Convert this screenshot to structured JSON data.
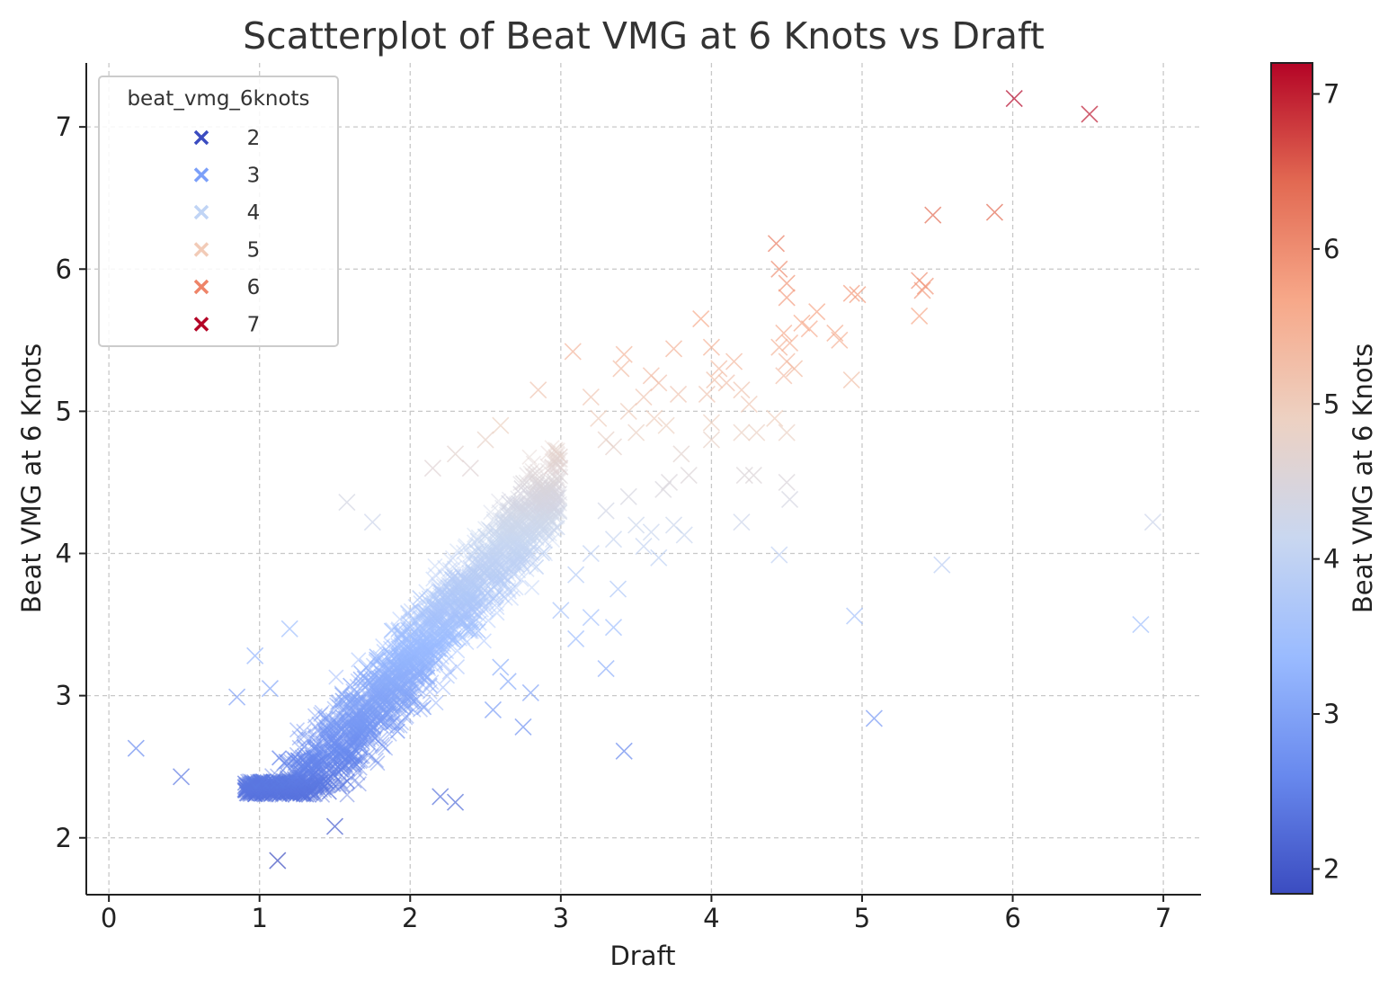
{
  "chart_data": {
    "type": "scatter",
    "title": "Scatterplot of Beat VMG at 6 Knots vs Draft",
    "xlabel": "Draft",
    "ylabel": "Beat VMG at 6 Knots",
    "xlim": [
      -0.15,
      7.25
    ],
    "ylim": [
      1.6,
      7.45
    ],
    "xticks": [
      0,
      1,
      2,
      3,
      4,
      5,
      6,
      7
    ],
    "yticks": [
      2,
      3,
      4,
      5,
      6,
      7
    ],
    "grid": true,
    "marker": "x",
    "legend": {
      "title": "beat_vmg_6knots",
      "placement": "top-left",
      "entries": [
        {
          "label": "2",
          "color": "#3b4cc0"
        },
        {
          "label": "3",
          "color": "#7b9ff9"
        },
        {
          "label": "4",
          "color": "#c0d4f5"
        },
        {
          "label": "5",
          "color": "#f2cbb7"
        },
        {
          "label": "6",
          "color": "#ee8468"
        },
        {
          "label": "7",
          "color": "#b40426"
        }
      ]
    },
    "colorbar": {
      "label": "Beat VMG at 6 Knots",
      "range": [
        1.84,
        7.2
      ],
      "ticks": [
        2,
        3,
        4,
        5,
        6,
        7
      ],
      "colormap": [
        "#3b4cc0",
        "#6889ee",
        "#9abbff",
        "#c9d7f0",
        "#edd1c2",
        "#f7a889",
        "#e26952",
        "#b40426"
      ]
    },
    "main_cluster": {
      "description_only_for_script": false,
      "slope": 1.25,
      "intercept": 0.75,
      "x_range": [
        0.9,
        3.0
      ],
      "spread": 0.28,
      "count": 2600
    },
    "points": [
      [
        0.18,
        2.63
      ],
      [
        0.48,
        2.43
      ],
      [
        1.12,
        1.84
      ],
      [
        0.85,
        2.99
      ],
      [
        0.97,
        3.28
      ],
      [
        1.07,
        3.05
      ],
      [
        1.2,
        3.47
      ],
      [
        2.3,
        2.25
      ],
      [
        2.2,
        2.29
      ],
      [
        1.5,
        2.08
      ],
      [
        2.8,
        3.02
      ],
      [
        2.75,
        2.78
      ],
      [
        3.42,
        2.61
      ],
      [
        3.3,
        3.19
      ],
      [
        3.35,
        3.48
      ],
      [
        3.38,
        3.75
      ],
      [
        2.55,
        2.9
      ],
      [
        2.6,
        3.2
      ],
      [
        2.65,
        3.1
      ],
      [
        1.58,
        4.36
      ],
      [
        1.75,
        4.22
      ],
      [
        2.15,
        4.6
      ],
      [
        2.3,
        4.7
      ],
      [
        2.4,
        4.6
      ],
      [
        2.5,
        4.8
      ],
      [
        2.6,
        4.9
      ],
      [
        2.85,
        5.15
      ],
      [
        3.08,
        5.42
      ],
      [
        3.2,
        5.1
      ],
      [
        3.25,
        4.95
      ],
      [
        3.3,
        4.8
      ],
      [
        3.35,
        4.75
      ],
      [
        3.4,
        5.3
      ],
      [
        3.42,
        5.4
      ],
      [
        3.45,
        5.0
      ],
      [
        3.5,
        4.85
      ],
      [
        3.55,
        5.1
      ],
      [
        3.6,
        5.25
      ],
      [
        3.62,
        4.95
      ],
      [
        3.65,
        5.2
      ],
      [
        3.7,
        4.9
      ],
      [
        3.75,
        5.44
      ],
      [
        3.78,
        5.12
      ],
      [
        3.8,
        4.7
      ],
      [
        3.85,
        4.55
      ],
      [
        3.72,
        4.5
      ],
      [
        3.68,
        4.45
      ],
      [
        3.3,
        4.3
      ],
      [
        3.35,
        4.1
      ],
      [
        3.45,
        4.4
      ],
      [
        3.5,
        4.2
      ],
      [
        3.6,
        4.15
      ],
      [
        3.65,
        3.97
      ],
      [
        3.55,
        4.05
      ],
      [
        3.2,
        4.0
      ],
      [
        3.1,
        3.85
      ],
      [
        3.0,
        3.6
      ],
      [
        3.1,
        3.4
      ],
      [
        3.2,
        3.55
      ],
      [
        3.93,
        5.65
      ],
      [
        4.0,
        5.45
      ],
      [
        4.05,
        5.3
      ],
      [
        4.1,
        5.2
      ],
      [
        4.15,
        5.35
      ],
      [
        4.2,
        5.15
      ],
      [
        4.25,
        5.05
      ],
      [
        4.02,
        5.22
      ],
      [
        3.97,
        5.12
      ],
      [
        4.0,
        4.92
      ],
      [
        4.0,
        4.8
      ],
      [
        4.2,
        4.85
      ],
      [
        4.3,
        4.85
      ],
      [
        4.22,
        4.55
      ],
      [
        4.28,
        4.55
      ],
      [
        4.2,
        4.22
      ],
      [
        4.45,
        3.99
      ],
      [
        4.5,
        4.5
      ],
      [
        4.52,
        4.38
      ],
      [
        4.42,
        4.95
      ],
      [
        4.5,
        4.85
      ],
      [
        4.43,
        6.18
      ],
      [
        4.45,
        6.0
      ],
      [
        4.5,
        5.9
      ],
      [
        4.5,
        5.8
      ],
      [
        4.48,
        5.55
      ],
      [
        4.45,
        5.45
      ],
      [
        4.52,
        5.48
      ],
      [
        4.5,
        5.35
      ],
      [
        4.48,
        5.25
      ],
      [
        4.55,
        5.3
      ],
      [
        4.6,
        5.62
      ],
      [
        4.65,
        5.58
      ],
      [
        4.7,
        5.7
      ],
      [
        4.82,
        5.55
      ],
      [
        4.85,
        5.5
      ],
      [
        4.93,
        5.83
      ],
      [
        4.97,
        5.82
      ],
      [
        4.93,
        5.22
      ],
      [
        5.38,
        5.92
      ],
      [
        5.4,
        5.85
      ],
      [
        5.38,
        5.67
      ],
      [
        5.42,
        5.88
      ],
      [
        5.47,
        6.38
      ],
      [
        5.88,
        6.4
      ],
      [
        6.01,
        7.2
      ],
      [
        6.51,
        7.09
      ],
      [
        4.95,
        3.56
      ],
      [
        5.08,
        2.84
      ],
      [
        5.53,
        3.92
      ],
      [
        6.85,
        3.5
      ],
      [
        6.93,
        4.22
      ],
      [
        3.75,
        4.2
      ],
      [
        3.82,
        4.13
      ]
    ]
  }
}
